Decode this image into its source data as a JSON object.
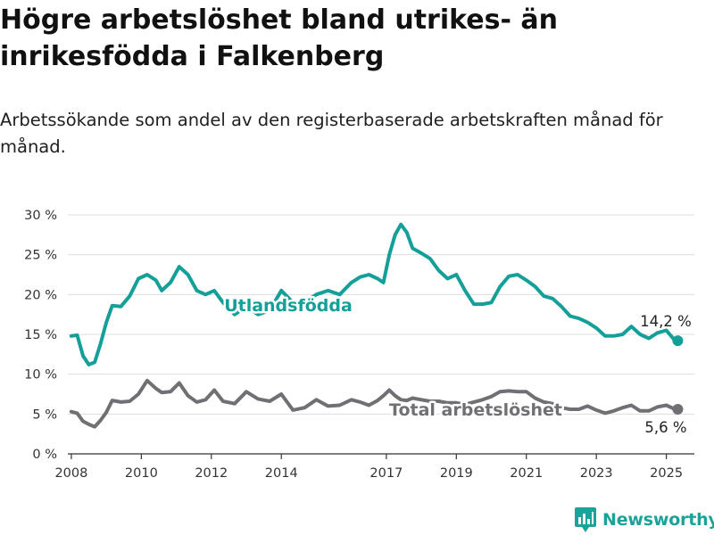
{
  "header": {
    "title": "Högre arbetslöshet bland utrikes- än inrikesfödda i Falkenberg",
    "subtitle": "Arbetssökande som andel av den registerbaserade arbetskraften månad för månad."
  },
  "brand": {
    "name": "Newsworthy",
    "icon": "bar-chart-logo-icon",
    "color": "#1aa39a"
  },
  "colors": {
    "foreign_born": "#14a098",
    "total": "#707074",
    "grid": "#dddddd",
    "axis": "#333333"
  },
  "chart_data": {
    "type": "line",
    "title": "Högre arbetslöshet bland utrikes- än inrikesfödda i Falkenberg",
    "subtitle": "Arbetssökande som andel av den registerbaserade arbetskraften månad för månad.",
    "xlabel": "",
    "ylabel": "",
    "ylim": [
      0,
      30
    ],
    "yticks": [
      "0 %",
      "5 %",
      "10 %",
      "15 %",
      "20 %",
      "25 %",
      "30 %"
    ],
    "xticks": [
      "2008",
      "2010",
      "2012",
      "2014",
      "2017",
      "2019",
      "2021",
      "2023",
      "2025"
    ],
    "grid": true,
    "series": [
      {
        "name": "Utlandsfödda",
        "color": "#14a098",
        "last_label": "14,2 %",
        "points": [
          [
            "2008-01",
            14.8
          ],
          [
            "2008-03",
            14.9
          ],
          [
            "2008-05",
            12.3
          ],
          [
            "2008-07",
            11.2
          ],
          [
            "2008-09",
            11.5
          ],
          [
            "2008-11",
            13.8
          ],
          [
            "2009-01",
            16.5
          ],
          [
            "2009-03",
            18.6
          ],
          [
            "2009-06",
            18.5
          ],
          [
            "2009-09",
            19.8
          ],
          [
            "2009-12",
            22.0
          ],
          [
            "2010-03",
            22.5
          ],
          [
            "2010-06",
            21.8
          ],
          [
            "2010-08",
            20.5
          ],
          [
            "2010-11",
            21.5
          ],
          [
            "2011-02",
            23.5
          ],
          [
            "2011-05",
            22.5
          ],
          [
            "2011-08",
            20.5
          ],
          [
            "2011-11",
            20.0
          ],
          [
            "2012-02",
            20.5
          ],
          [
            "2012-05",
            19.0
          ],
          [
            "2012-09",
            17.5
          ],
          [
            "2013-01",
            18.5
          ],
          [
            "2013-05",
            17.5
          ],
          [
            "2013-09",
            18.0
          ],
          [
            "2014-01",
            20.5
          ],
          [
            "2014-05",
            19.0
          ],
          [
            "2014-09",
            19.0
          ],
          [
            "2015-01",
            20.0
          ],
          [
            "2015-05",
            20.5
          ],
          [
            "2015-09",
            20.0
          ],
          [
            "2016-01",
            21.5
          ],
          [
            "2016-04",
            22.2
          ],
          [
            "2016-07",
            22.5
          ],
          [
            "2016-10",
            22.0
          ],
          [
            "2016-12",
            21.5
          ],
          [
            "2017-02",
            25.0
          ],
          [
            "2017-04",
            27.5
          ],
          [
            "2017-06",
            28.8
          ],
          [
            "2017-08",
            27.8
          ],
          [
            "2017-10",
            25.8
          ],
          [
            "2018-01",
            25.2
          ],
          [
            "2018-04",
            24.5
          ],
          [
            "2018-07",
            23.0
          ],
          [
            "2018-10",
            22.0
          ],
          [
            "2019-01",
            22.5
          ],
          [
            "2019-04",
            20.5
          ],
          [
            "2019-07",
            18.8
          ],
          [
            "2019-10",
            18.8
          ],
          [
            "2020-01",
            19.0
          ],
          [
            "2020-04",
            21.0
          ],
          [
            "2020-07",
            22.3
          ],
          [
            "2020-10",
            22.5
          ],
          [
            "2021-01",
            21.8
          ],
          [
            "2021-04",
            21.0
          ],
          [
            "2021-07",
            19.8
          ],
          [
            "2021-10",
            19.5
          ],
          [
            "2022-01",
            18.5
          ],
          [
            "2022-04",
            17.3
          ],
          [
            "2022-07",
            17.0
          ],
          [
            "2022-10",
            16.5
          ],
          [
            "2023-01",
            15.8
          ],
          [
            "2023-04",
            14.8
          ],
          [
            "2023-07",
            14.8
          ],
          [
            "2023-10",
            15.0
          ],
          [
            "2024-01",
            16.0
          ],
          [
            "2024-04",
            15.0
          ],
          [
            "2024-07",
            14.5
          ],
          [
            "2024-10",
            15.2
          ],
          [
            "2025-01",
            15.5
          ],
          [
            "2025-04",
            14.2
          ]
        ]
      },
      {
        "name": "Total arbetslöshet",
        "color": "#707074",
        "last_label": "5,6 %",
        "points": [
          [
            "2008-01",
            5.3
          ],
          [
            "2008-03",
            5.1
          ],
          [
            "2008-05",
            4.1
          ],
          [
            "2008-07",
            3.7
          ],
          [
            "2008-09",
            3.4
          ],
          [
            "2008-11",
            4.2
          ],
          [
            "2009-01",
            5.2
          ],
          [
            "2009-03",
            6.7
          ],
          [
            "2009-06",
            6.5
          ],
          [
            "2009-09",
            6.6
          ],
          [
            "2009-12",
            7.5
          ],
          [
            "2010-03",
            9.2
          ],
          [
            "2010-06",
            8.2
          ],
          [
            "2010-08",
            7.7
          ],
          [
            "2010-11",
            7.8
          ],
          [
            "2011-02",
            8.9
          ],
          [
            "2011-05",
            7.3
          ],
          [
            "2011-08",
            6.5
          ],
          [
            "2011-11",
            6.8
          ],
          [
            "2012-02",
            8.0
          ],
          [
            "2012-05",
            6.6
          ],
          [
            "2012-09",
            6.3
          ],
          [
            "2013-01",
            7.8
          ],
          [
            "2013-05",
            6.9
          ],
          [
            "2013-09",
            6.6
          ],
          [
            "2014-01",
            7.5
          ],
          [
            "2014-05",
            5.5
          ],
          [
            "2014-09",
            5.8
          ],
          [
            "2015-01",
            6.8
          ],
          [
            "2015-05",
            6.0
          ],
          [
            "2015-09",
            6.1
          ],
          [
            "2016-01",
            6.8
          ],
          [
            "2016-04",
            6.5
          ],
          [
            "2016-07",
            6.1
          ],
          [
            "2016-10",
            6.7
          ],
          [
            "2016-12",
            7.3
          ],
          [
            "2017-02",
            8.0
          ],
          [
            "2017-04",
            7.3
          ],
          [
            "2017-06",
            6.8
          ],
          [
            "2017-08",
            6.7
          ],
          [
            "2017-10",
            7.0
          ],
          [
            "2018-01",
            6.8
          ],
          [
            "2018-04",
            6.6
          ],
          [
            "2018-07",
            6.6
          ],
          [
            "2018-10",
            6.4
          ],
          [
            "2019-01",
            6.4
          ],
          [
            "2019-04",
            6.2
          ],
          [
            "2019-07",
            6.5
          ],
          [
            "2019-10",
            6.8
          ],
          [
            "2020-01",
            7.2
          ],
          [
            "2020-04",
            7.8
          ],
          [
            "2020-07",
            7.9
          ],
          [
            "2020-10",
            7.8
          ],
          [
            "2021-01",
            7.8
          ],
          [
            "2021-04",
            7.0
          ],
          [
            "2021-07",
            6.5
          ],
          [
            "2021-10",
            6.3
          ],
          [
            "2022-01",
            5.8
          ],
          [
            "2022-04",
            5.6
          ],
          [
            "2022-07",
            5.6
          ],
          [
            "2022-10",
            6.0
          ],
          [
            "2023-01",
            5.5
          ],
          [
            "2023-04",
            5.1
          ],
          [
            "2023-07",
            5.4
          ],
          [
            "2023-10",
            5.8
          ],
          [
            "2024-01",
            6.1
          ],
          [
            "2024-04",
            5.4
          ],
          [
            "2024-07",
            5.4
          ],
          [
            "2024-10",
            5.9
          ],
          [
            "2025-01",
            6.1
          ],
          [
            "2025-04",
            5.6
          ]
        ]
      }
    ]
  }
}
